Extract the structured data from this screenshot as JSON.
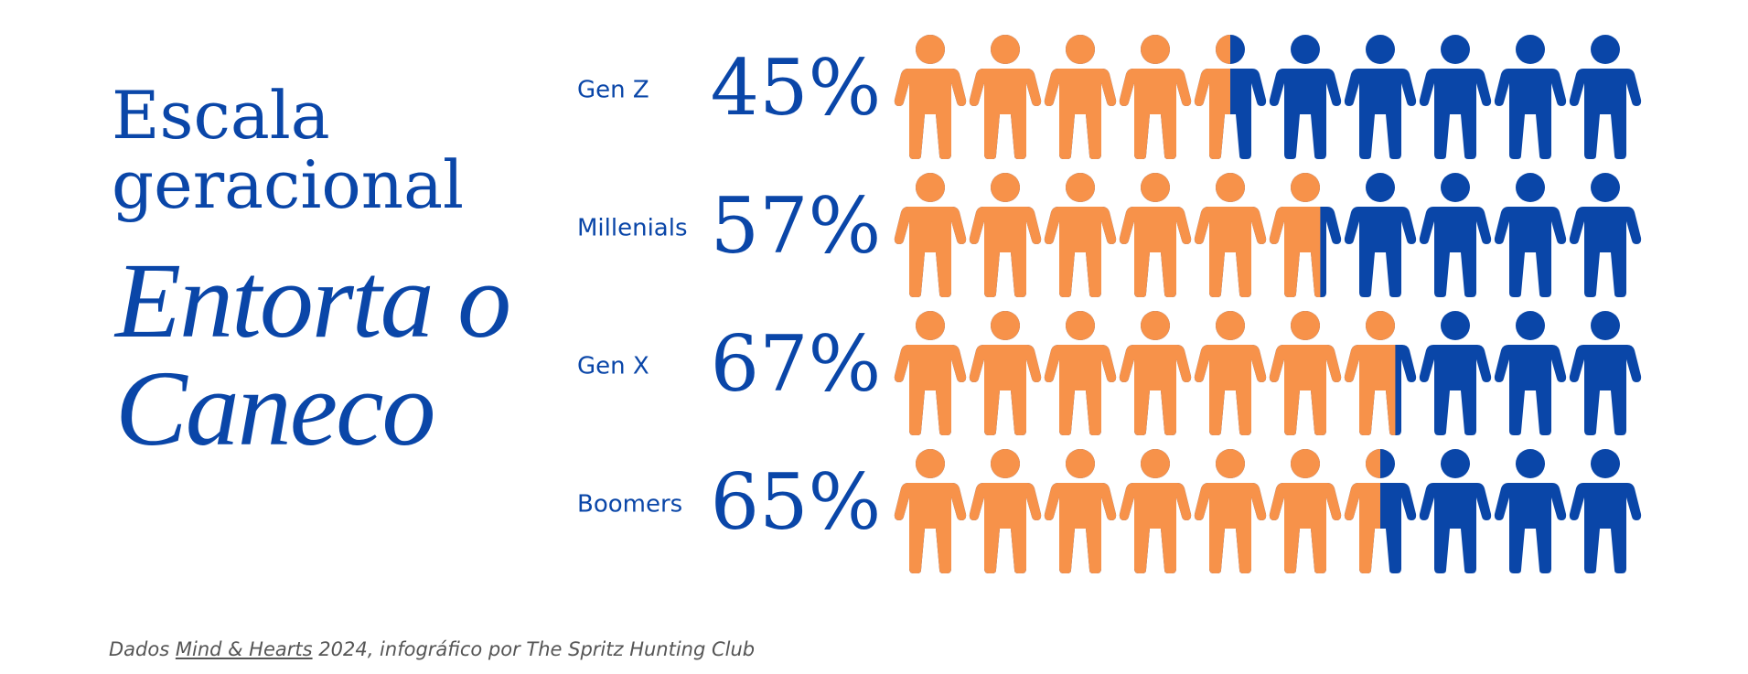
{
  "chart_data": {
    "type": "pictogram",
    "title": "Escala geracional",
    "subtitle": "Entorta o Caneco",
    "categories": [
      "Gen Z",
      "Millenials",
      "Gen X",
      "Boomers"
    ],
    "values": [
      45,
      57,
      67,
      65
    ],
    "value_labels": [
      "45%",
      "57%",
      "67%",
      "65%"
    ],
    "xlim": [
      0,
      100
    ],
    "color": "#f7924a",
    "rest_color": "#0a46a8",
    "source": {
      "prefix": "Dados",
      "link": "Mind & Hearts",
      "suffix": "2024, infográfico por The Spritz Hunting Club"
    }
  }
}
